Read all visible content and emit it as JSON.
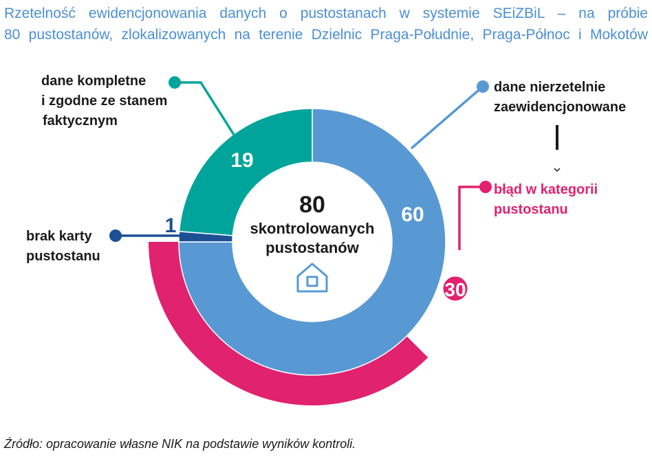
{
  "title_lines": [
    "Rzetelność ewidencjonowania danych o pustostanach w systemie SEiZBiL – na próbie",
    "80 pustostanów, zlokalizowanych na terenie Dzielnic Praga-Południe, Praga-Północ i Mokotów"
  ],
  "center": {
    "value": "80",
    "label_lines": [
      "skontrolowanych",
      "pustostanów"
    ]
  },
  "labels": {
    "complete": [
      "dane kompletne",
      "i zgodne ze stanem",
      "faktycznym"
    ],
    "unreliable": [
      "dane nierzetelnie",
      "zaewidencjonowane"
    ],
    "no_card": [
      "brak karty",
      "pustostanu"
    ],
    "category_error": [
      "błąd w kategorii",
      "pustostanu"
    ]
  },
  "source": "Źródło: opracowanie własne NIK na podstawie wyników kontroli.",
  "colors": {
    "complete": "#00a49a",
    "unreliable": "#5899d4",
    "no_card": "#1d4f94",
    "category_error": "#e0226f",
    "title": "#4a8fd6"
  },
  "chart_data": {
    "type": "pie",
    "total": 80,
    "slices": [
      {
        "key": "unreliable",
        "value": 60,
        "label": "60"
      },
      {
        "key": "no_card",
        "value": 1,
        "label": "1"
      },
      {
        "key": "complete",
        "value": 19,
        "label": "19"
      }
    ],
    "subset": {
      "key": "category_error",
      "parent": "unreliable",
      "value": 30,
      "label": "30"
    }
  }
}
